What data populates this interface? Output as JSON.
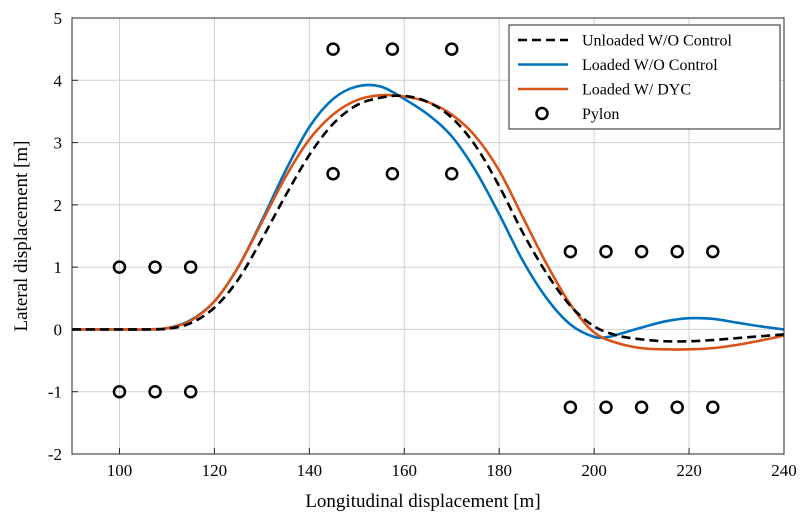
{
  "chart_data": {
    "type": "line",
    "title": "",
    "xlabel": "Longitudinal displacement [m]",
    "ylabel": "Lateral displacement [m]",
    "xlim": [
      90,
      240
    ],
    "ylim": [
      -2,
      5
    ],
    "xticks": [
      100,
      120,
      140,
      160,
      180,
      200,
      220,
      240
    ],
    "yticks": [
      -2,
      -1,
      0,
      1,
      2,
      3,
      4,
      5
    ],
    "grid": true,
    "legend_position": "top-right",
    "series": [
      {
        "name": "Unloaded W/O Control",
        "style": "dashed",
        "color": "#000000",
        "x": [
          90,
          100,
          105,
          110,
          115,
          120,
          125,
          130,
          135,
          140,
          145,
          150,
          155,
          160,
          165,
          170,
          175,
          180,
          185,
          190,
          195,
          200,
          205,
          210,
          215,
          220,
          225,
          230,
          235,
          240
        ],
        "y": [
          0,
          0,
          0,
          0.01,
          0.1,
          0.35,
          0.8,
          1.45,
          2.15,
          2.8,
          3.3,
          3.6,
          3.72,
          3.75,
          3.65,
          3.4,
          2.95,
          2.3,
          1.55,
          0.9,
          0.38,
          0.05,
          -0.1,
          -0.16,
          -0.19,
          -0.19,
          -0.17,
          -0.14,
          -0.11,
          -0.08
        ]
      },
      {
        "name": "Loaded W/O Control",
        "style": "solid",
        "color": "#0072BD",
        "x": [
          90,
          100,
          105,
          110,
          115,
          120,
          125,
          130,
          135,
          140,
          145,
          150,
          155,
          160,
          165,
          170,
          175,
          180,
          185,
          190,
          195,
          200,
          203,
          205,
          210,
          215,
          220,
          225,
          230,
          235,
          240
        ],
        "y": [
          0,
          0,
          0,
          0.02,
          0.15,
          0.45,
          1.0,
          1.75,
          2.55,
          3.25,
          3.7,
          3.9,
          3.9,
          3.7,
          3.45,
          3.1,
          2.55,
          1.85,
          1.1,
          0.5,
          0.08,
          -0.12,
          -0.12,
          -0.08,
          0.03,
          0.13,
          0.18,
          0.17,
          0.11,
          0.05,
          0.0
        ]
      },
      {
        "name": "Loaded W/ DYC",
        "style": "solid",
        "color": "#D95319",
        "x": [
          90,
          100,
          105,
          110,
          115,
          120,
          125,
          130,
          135,
          140,
          145,
          150,
          155,
          160,
          165,
          170,
          175,
          180,
          185,
          190,
          195,
          200,
          205,
          210,
          215,
          220,
          225,
          230,
          235,
          240
        ],
        "y": [
          0,
          0,
          0,
          0.02,
          0.14,
          0.45,
          1.0,
          1.72,
          2.45,
          3.05,
          3.45,
          3.68,
          3.76,
          3.74,
          3.65,
          3.45,
          3.1,
          2.55,
          1.8,
          1.05,
          0.4,
          -0.05,
          -0.22,
          -0.3,
          -0.32,
          -0.32,
          -0.3,
          -0.25,
          -0.18,
          -0.1
        ]
      },
      {
        "name": "Pylon",
        "style": "markers",
        "color": "#000000",
        "x": [
          100,
          107.5,
          115,
          100,
          107.5,
          115,
          145,
          157.5,
          170,
          145,
          157.5,
          170,
          195,
          202.5,
          210,
          217.5,
          225,
          195,
          202.5,
          210,
          217.5,
          225
        ],
        "y": [
          1,
          1,
          1,
          -1,
          -1,
          -1,
          4.5,
          4.5,
          4.5,
          2.5,
          2.5,
          2.5,
          1.25,
          1.25,
          1.25,
          1.25,
          1.25,
          -1.25,
          -1.25,
          -1.25,
          -1.25,
          -1.25
        ]
      }
    ]
  }
}
